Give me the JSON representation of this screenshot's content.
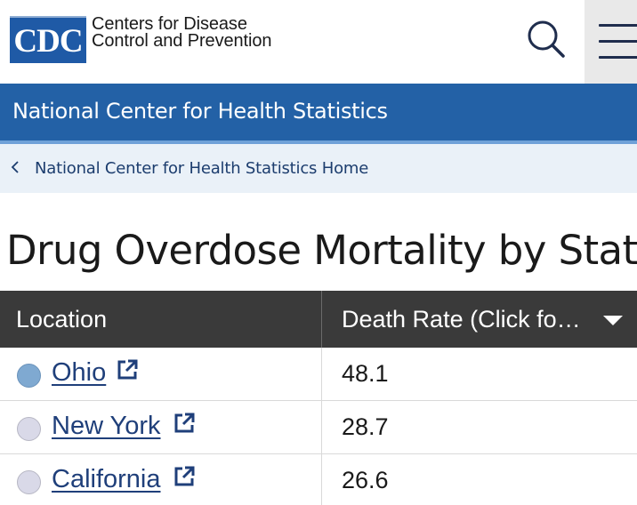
{
  "header": {
    "logo_text": "CDC",
    "org_line1": "Centers for Disease",
    "org_line2": "Control and Prevention",
    "search_icon": "search-icon",
    "menu_icon": "hamburger-menu-icon"
  },
  "band": {
    "title": "National Center for Health Statistics"
  },
  "breadcrumb": {
    "label": "National Center for Health Statistics Home",
    "icon": "chevron-left-icon"
  },
  "page": {
    "title": "Drug Overdose Mortality by State"
  },
  "table": {
    "columns": [
      "Location",
      "Death Rate (Click fo…"
    ],
    "rows": [
      {
        "location": "Ohio",
        "rate": "48.1",
        "selected": true
      },
      {
        "location": "New York",
        "rate": "28.7",
        "selected": false
      },
      {
        "location": "California",
        "rate": "26.6",
        "selected": false
      }
    ]
  },
  "colors": {
    "brand_blue": "#2361a6",
    "header_dark": "#3a3a3a",
    "link": "#1f3f7a"
  }
}
